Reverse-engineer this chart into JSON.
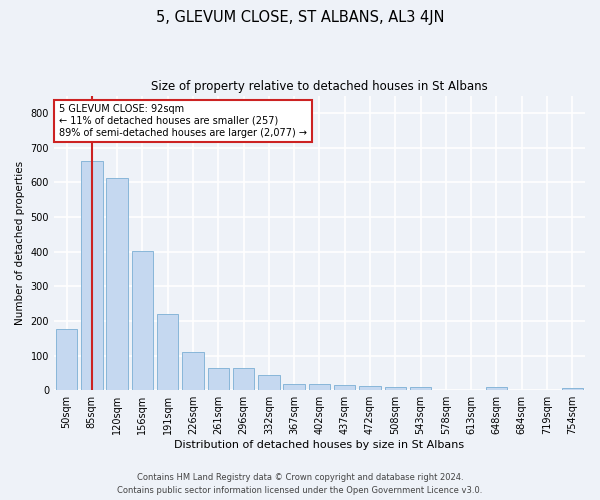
{
  "title": "5, GLEVUM CLOSE, ST ALBANS, AL3 4JN",
  "subtitle": "Size of property relative to detached houses in St Albans",
  "xlabel": "Distribution of detached houses by size in St Albans",
  "ylabel": "Number of detached properties",
  "footer_line1": "Contains HM Land Registry data © Crown copyright and database right 2024.",
  "footer_line2": "Contains public sector information licensed under the Open Government Licence v3.0.",
  "categories": [
    "50sqm",
    "85sqm",
    "120sqm",
    "156sqm",
    "191sqm",
    "226sqm",
    "261sqm",
    "296sqm",
    "332sqm",
    "367sqm",
    "402sqm",
    "437sqm",
    "472sqm",
    "508sqm",
    "543sqm",
    "578sqm",
    "613sqm",
    "648sqm",
    "684sqm",
    "719sqm",
    "754sqm"
  ],
  "values": [
    178,
    660,
    613,
    401,
    219,
    110,
    63,
    63,
    44,
    17,
    17,
    16,
    13,
    8,
    8,
    1,
    1,
    8,
    1,
    1,
    7
  ],
  "bar_color": "#c5d8f0",
  "bar_edge_color": "#7bafd4",
  "highlight_bar_index": 1,
  "highlight_color": "#cc2222",
  "annotation_text": "5 GLEVUM CLOSE: 92sqm\n← 11% of detached houses are smaller (257)\n89% of semi-detached houses are larger (2,077) →",
  "annotation_box_color": "#ffffff",
  "annotation_box_edge_color": "#cc2222",
  "ylim": [
    0,
    850
  ],
  "yticks": [
    0,
    100,
    200,
    300,
    400,
    500,
    600,
    700,
    800
  ],
  "background_color": "#eef2f8",
  "grid_color": "#ffffff",
  "title_fontsize": 10.5,
  "subtitle_fontsize": 8.5,
  "axis_label_fontsize": 7.5,
  "tick_fontsize": 7,
  "footer_fontsize": 6,
  "annotation_fontsize": 7
}
